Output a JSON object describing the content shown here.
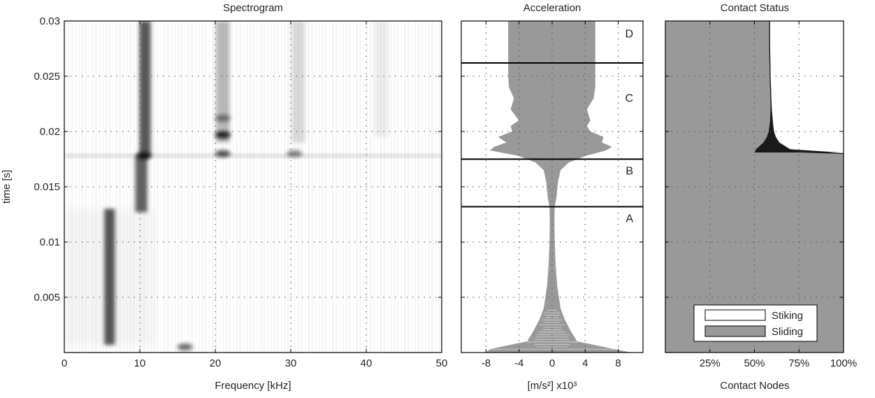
{
  "colors": {
    "axis": "#000000",
    "grid": "#555555",
    "fill_gray": "#999999",
    "fill_dark": "#1a1a1a",
    "spectro_band": "#3a3a3a"
  },
  "chart_data": [
    {
      "type": "heatmap",
      "title": "Spectrogram",
      "xlabel": "Frequency [kHz]",
      "ylabel": "time [s]",
      "xlim": [
        0,
        50
      ],
      "ylim": [
        0,
        0.03
      ],
      "xticks": [
        0,
        10,
        20,
        30,
        40,
        50
      ],
      "xtick_labels": [
        "0",
        "10",
        "20",
        "30",
        "40",
        "50"
      ],
      "yticks": [
        0.005,
        0.01,
        0.015,
        0.02,
        0.025,
        0.03
      ],
      "ytick_labels": [
        "0.005",
        "0.01",
        "0.015",
        "0.02",
        "0.025",
        "0.03"
      ],
      "grid": true,
      "bands": [
        {
          "f": 6,
          "t0": 0.0007,
          "t1": 0.013,
          "intensity": 0.85,
          "width": 1.4
        },
        {
          "f": 10.2,
          "t0": 0.0127,
          "t1": 0.0177,
          "intensity": 0.8,
          "width": 1.6
        },
        {
          "f": 10.7,
          "t0": 0.0178,
          "t1": 0.03,
          "intensity": 0.85,
          "width": 1.5
        },
        {
          "f": 21,
          "t0": 0.019,
          "t1": 0.03,
          "intensity": 0.35,
          "width": 1.8
        },
        {
          "f": 31,
          "t0": 0.019,
          "t1": 0.03,
          "intensity": 0.18,
          "width": 1.8
        },
        {
          "f": 42,
          "t0": 0.0195,
          "t1": 0.03,
          "intensity": 0.08,
          "width": 1.8
        }
      ],
      "hot_spots": [
        {
          "f": 10.5,
          "t": 0.0178,
          "intensity": 1.0
        },
        {
          "f": 21,
          "t": 0.0197,
          "intensity": 0.9
        },
        {
          "f": 21,
          "t": 0.018,
          "intensity": 0.7
        },
        {
          "f": 21,
          "t": 0.0212,
          "intensity": 0.45
        },
        {
          "f": 30.5,
          "t": 0.018,
          "intensity": 0.5
        },
        {
          "f": 16,
          "t": 0.0005,
          "intensity": 0.6
        }
      ],
      "horizontal_line": {
        "t": 0.0178
      }
    },
    {
      "type": "area",
      "title": "Acceleration",
      "xlabel": "[m/s²] x10³",
      "ylim": [
        0,
        0.03
      ],
      "xlim": [
        -11,
        11
      ],
      "xticks": [
        -8,
        -4,
        0,
        4,
        8
      ],
      "xtick_labels": [
        "-8",
        "-4",
        "0",
        "4",
        "8"
      ],
      "grid": true,
      "envelope": {
        "t": [
          0,
          0.0003,
          0.001,
          0.002,
          0.003,
          0.004,
          0.006,
          0.008,
          0.01,
          0.012,
          0.0132,
          0.014,
          0.0155,
          0.0165,
          0.0172,
          0.0178,
          0.0183,
          0.0186,
          0.019,
          0.0195,
          0.02,
          0.0205,
          0.021,
          0.022,
          0.023,
          0.024,
          0.025,
          0.026,
          0.027,
          0.028,
          0.029,
          0.03
        ],
        "left": [
          -8,
          -7.5,
          -3,
          -2.2,
          -1.5,
          -1.0,
          -0.6,
          -0.4,
          -0.3,
          -0.25,
          -0.3,
          -0.5,
          -0.7,
          -1.0,
          -2.0,
          -4.0,
          -7.5,
          -7.0,
          -5.5,
          -6.5,
          -4.8,
          -5.0,
          -4.0,
          -5.0,
          -4.6,
          -5.2,
          -5.3,
          -5.3,
          -5.3,
          -5.3,
          -5.3,
          -5.3
        ],
        "right": [
          9.5,
          7.5,
          3,
          2.2,
          1.5,
          1.0,
          0.6,
          0.4,
          0.3,
          0.25,
          0.3,
          0.5,
          0.7,
          1.0,
          2.0,
          4.0,
          6.5,
          7.2,
          6.0,
          6.2,
          4.6,
          4.2,
          4.6,
          4.2,
          5.0,
          5.2,
          5.2,
          5.2,
          5.2,
          5.2,
          5.2,
          5.2
        ]
      },
      "phase_lines": [
        0.0132,
        0.0175,
        0.0262
      ],
      "phase_labels": [
        {
          "label": "A",
          "t": 0.0118
        },
        {
          "label": "B",
          "t": 0.0161
        },
        {
          "label": "C",
          "t": 0.0227
        },
        {
          "label": "D",
          "t": 0.0285
        }
      ]
    },
    {
      "type": "area",
      "title": "Contact Status",
      "xlabel": "Contact Nodes",
      "xlim": [
        0,
        100
      ],
      "ylim": [
        0,
        0.03
      ],
      "xticks": [
        25,
        50,
        75,
        100
      ],
      "xtick_labels": [
        "25%",
        "50%",
        "75%",
        "100%"
      ],
      "grid": true,
      "series": [
        {
          "name": "Stiking",
          "color": "#ffffff"
        },
        {
          "name": "Sliding",
          "color": "#999999"
        }
      ],
      "sliding_boundary": {
        "t": [
          0.018,
          0.0182,
          0.0186,
          0.019,
          0.0195,
          0.02,
          0.021,
          0.022,
          0.023,
          0.024,
          0.025,
          0.026,
          0.027,
          0.028,
          0.029,
          0.03
        ],
        "pct": [
          100,
          67,
          63,
          62,
          61,
          60.5,
          60,
          59.5,
          59.2,
          59,
          58.8,
          58.7,
          58.6,
          58.5,
          58.5,
          58.5
        ]
      },
      "dark_region": {
        "t": [
          0.0181,
          0.0184,
          0.019,
          0.0195,
          0.02,
          0.021,
          0.022,
          0.023
        ],
        "left": [
          50,
          51,
          55,
          57,
          58,
          58.8,
          59,
          59
        ],
        "right": [
          98,
          70,
          64,
          62,
          61,
          60.2,
          59.6,
          59.2
        ]
      },
      "legend_position": "bottom-right"
    }
  ]
}
